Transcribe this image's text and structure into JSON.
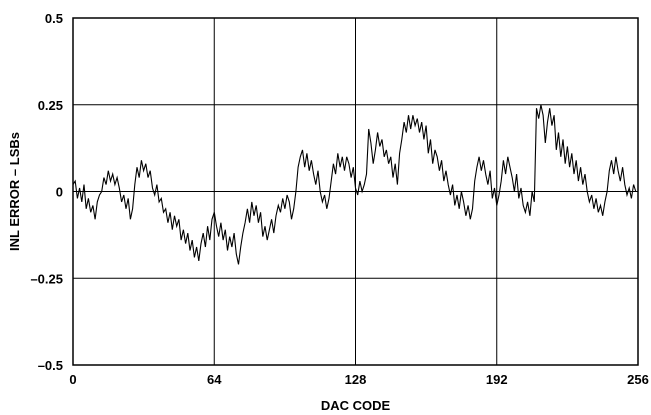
{
  "chart_data": {
    "type": "line",
    "xlabel": "DAC CODE",
    "ylabel": "INL ERROR – LSBs",
    "xlim": [
      0,
      256
    ],
    "ylim": [
      -0.5,
      0.5
    ],
    "x_ticks": [
      0,
      64,
      128,
      192,
      256
    ],
    "x_tick_labels": [
      "0",
      "64",
      "128",
      "192",
      "256"
    ],
    "y_ticks": [
      0.5,
      0.25,
      0,
      -0.25,
      -0.5
    ],
    "y_tick_labels": [
      "0.5",
      "0.25",
      "0",
      "–0.25",
      "–0.5"
    ],
    "grid": true,
    "colors": {
      "line": "#000000",
      "grid": "#000000",
      "background": "#ffffff"
    },
    "series": [
      {
        "x": [
          0,
          1,
          2,
          3,
          4,
          5,
          6,
          7,
          8,
          9,
          10,
          11,
          12,
          13,
          14,
          15,
          16,
          17,
          18,
          19,
          20,
          21,
          22,
          23,
          24,
          25,
          26,
          27,
          28,
          29,
          30,
          31,
          32,
          33,
          34,
          35,
          36,
          37,
          38,
          39,
          40,
          41,
          42,
          43,
          44,
          45,
          46,
          47,
          48,
          49,
          50,
          51,
          52,
          53,
          54,
          55,
          56,
          57,
          58,
          59,
          60,
          61,
          62,
          63,
          64,
          65,
          66,
          67,
          68,
          69,
          70,
          71,
          72,
          73,
          74,
          75,
          76,
          77,
          78,
          79,
          80,
          81,
          82,
          83,
          84,
          85,
          86,
          87,
          88,
          89,
          90,
          91,
          92,
          93,
          94,
          95,
          96,
          97,
          98,
          99,
          100,
          101,
          102,
          103,
          104,
          105,
          106,
          107,
          108,
          109,
          110,
          111,
          112,
          113,
          114,
          115,
          116,
          117,
          118,
          119,
          120,
          121,
          122,
          123,
          124,
          125,
          126,
          127,
          128,
          129,
          130,
          131,
          132,
          133,
          134,
          135,
          136,
          137,
          138,
          139,
          140,
          141,
          142,
          143,
          144,
          145,
          146,
          147,
          148,
          149,
          150,
          151,
          152,
          153,
          154,
          155,
          156,
          157,
          158,
          159,
          160,
          161,
          162,
          163,
          164,
          165,
          166,
          167,
          168,
          169,
          170,
          171,
          172,
          173,
          174,
          175,
          176,
          177,
          178,
          179,
          180,
          181,
          182,
          183,
          184,
          185,
          186,
          187,
          188,
          189,
          190,
          191,
          192,
          193,
          194,
          195,
          196,
          197,
          198,
          199,
          200,
          201,
          202,
          203,
          204,
          205,
          206,
          207,
          208,
          209,
          210,
          211,
          212,
          213,
          214,
          215,
          216,
          217,
          218,
          219,
          220,
          221,
          222,
          223,
          224,
          225,
          226,
          227,
          228,
          229,
          230,
          231,
          232,
          233,
          234,
          235,
          236,
          237,
          238,
          239,
          240,
          241,
          242,
          243,
          244,
          245,
          246,
          247,
          248,
          249,
          250,
          251,
          252,
          253,
          254,
          255,
          256
        ],
        "y": [
          0.02,
          0.03,
          -0.02,
          0.01,
          -0.03,
          0.02,
          -0.05,
          -0.02,
          -0.06,
          -0.04,
          -0.08,
          -0.03,
          -0.01,
          0.0,
          0.04,
          0.02,
          0.06,
          0.03,
          0.05,
          0.02,
          0.04,
          0.01,
          -0.03,
          -0.01,
          -0.05,
          -0.02,
          -0.08,
          -0.05,
          0.02,
          0.07,
          0.04,
          0.09,
          0.06,
          0.08,
          0.04,
          0.06,
          0.01,
          -0.01,
          0.02,
          -0.03,
          -0.02,
          -0.06,
          -0.05,
          -0.09,
          -0.06,
          -0.11,
          -0.07,
          -0.1,
          -0.08,
          -0.14,
          -0.11,
          -0.15,
          -0.12,
          -0.17,
          -0.14,
          -0.19,
          -0.16,
          -0.2,
          -0.15,
          -0.12,
          -0.16,
          -0.1,
          -0.14,
          -0.08,
          -0.06,
          -0.1,
          -0.13,
          -0.09,
          -0.14,
          -0.11,
          -0.17,
          -0.13,
          -0.16,
          -0.12,
          -0.18,
          -0.21,
          -0.16,
          -0.12,
          -0.09,
          -0.05,
          -0.09,
          -0.03,
          -0.07,
          -0.04,
          -0.09,
          -0.06,
          -0.13,
          -0.1,
          -0.14,
          -0.11,
          -0.08,
          -0.12,
          -0.07,
          -0.04,
          -0.06,
          -0.02,
          -0.05,
          -0.01,
          -0.03,
          -0.08,
          -0.05,
          0.0,
          0.07,
          0.1,
          0.12,
          0.07,
          0.11,
          0.06,
          0.09,
          0.05,
          0.02,
          0.06,
          0.0,
          -0.03,
          -0.01,
          -0.05,
          -0.02,
          0.03,
          0.08,
          0.05,
          0.11,
          0.07,
          0.1,
          0.06,
          0.1,
          0.08,
          0.04,
          0.07,
          0.01,
          -0.01,
          0.03,
          0.0,
          0.02,
          0.05,
          0.18,
          0.14,
          0.08,
          0.12,
          0.17,
          0.13,
          0.15,
          0.1,
          0.12,
          0.08,
          0.1,
          0.04,
          0.08,
          0.02,
          0.11,
          0.15,
          0.2,
          0.17,
          0.22,
          0.18,
          0.22,
          0.19,
          0.21,
          0.17,
          0.2,
          0.15,
          0.19,
          0.11,
          0.15,
          0.08,
          0.12,
          0.1,
          0.06,
          0.09,
          0.03,
          0.06,
          0.02,
          -0.01,
          0.02,
          -0.04,
          -0.01,
          -0.05,
          0.0,
          -0.03,
          -0.07,
          -0.04,
          -0.08,
          -0.05,
          0.03,
          0.07,
          0.1,
          0.06,
          0.09,
          0.05,
          0.02,
          0.06,
          -0.02,
          0.01,
          -0.04,
          -0.01,
          0.03,
          0.09,
          0.05,
          0.1,
          0.07,
          0.04,
          0.0,
          0.05,
          -0.02,
          0.01,
          -0.04,
          -0.06,
          -0.03,
          -0.07,
          0.0,
          -0.03,
          0.24,
          0.21,
          0.25,
          0.22,
          0.14,
          0.2,
          0.24,
          0.19,
          0.22,
          0.12,
          0.17,
          0.1,
          0.15,
          0.08,
          0.13,
          0.07,
          0.11,
          0.05,
          0.09,
          0.03,
          0.07,
          0.02,
          0.05,
          0.0,
          -0.03,
          -0.01,
          -0.05,
          -0.02,
          -0.06,
          -0.04,
          -0.07,
          -0.03,
          0.0,
          0.06,
          0.09,
          0.05,
          0.1,
          0.06,
          0.03,
          0.07,
          0.02,
          -0.01,
          0.01,
          -0.02,
          0.02,
          0.0,
          0.0
        ]
      }
    ]
  }
}
